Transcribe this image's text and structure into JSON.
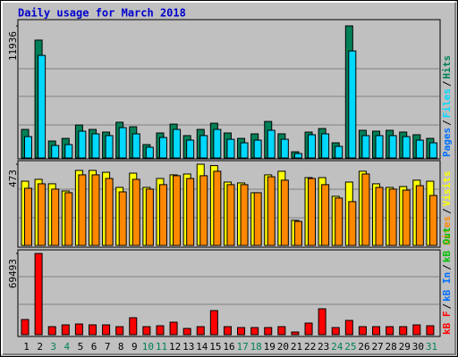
{
  "legend_separator": "/",
  "chart_data": [
    {
      "type": "bar",
      "title": "Daily usage for March 2018",
      "ylim": [
        0,
        11936
      ],
      "yticks": [
        11936
      ],
      "legend_reversed": true,
      "series": [
        {
          "name": "Hits",
          "color": "#008058",
          "values": [
            2580,
            10650,
            1530,
            1770,
            2980,
            2580,
            2340,
            3230,
            2820,
            1210,
            2260,
            3060,
            2020,
            2580,
            3140,
            2260,
            1770,
            2180,
            3300,
            2180,
            560,
            2340,
            2660,
            1370,
            11936,
            2500,
            2420,
            2500,
            2340,
            2100,
            1770
          ]
        },
        {
          "name": "Files",
          "color": "#00d8ff",
          "values": [
            1930,
            9270,
            1130,
            1210,
            2420,
            2180,
            2020,
            2740,
            2180,
            970,
            1850,
            2580,
            1610,
            2020,
            2580,
            1690,
            1370,
            1610,
            2500,
            1690,
            400,
            2100,
            2180,
            1050,
            9670,
            2020,
            2020,
            2020,
            1930,
            1610,
            1370
          ]
        },
        {
          "name": "Pages",
          "color": "#0070ff",
          "values": [
            0,
            0,
            0,
            0,
            0,
            0,
            0,
            0,
            0,
            0,
            0,
            0,
            0,
            0,
            0,
            0,
            0,
            0,
            0,
            0,
            0,
            0,
            0,
            0,
            0,
            0,
            0,
            0,
            0,
            0,
            0
          ]
        }
      ]
    },
    {
      "type": "bar",
      "ylim": [
        0,
        473
      ],
      "yticks": [
        473
      ],
      "legend_reversed": true,
      "series": [
        {
          "name": "Visits",
          "color": "#ffff00",
          "values": [
            374,
            385,
            359,
            317,
            437,
            437,
            426,
            338,
            421,
            338,
            390,
            411,
            416,
            473,
            465,
            369,
            364,
            307,
            411,
            432,
            146,
            395,
            395,
            286,
            369,
            432,
            359,
            338,
            343,
            380,
            374
          ]
        },
        {
          "name": "Sites",
          "color": "#ff8800",
          "values": [
            333,
            359,
            328,
            307,
            411,
            411,
            390,
            312,
            385,
            328,
            354,
            406,
            390,
            406,
            432,
            354,
            354,
            307,
            400,
            380,
            140,
            390,
            354,
            276,
            255,
            416,
            338,
            328,
            322,
            348,
            291
          ]
        }
      ]
    },
    {
      "type": "bar",
      "ylim": [
        0,
        69493
      ],
      "yticks": [
        69493
      ],
      "legend_reversed": false,
      "categories": [
        "1",
        "2",
        "3",
        "4",
        "5",
        "6",
        "7",
        "8",
        "9",
        "10",
        "11",
        "12",
        "13",
        "14",
        "15",
        "16",
        "17",
        "18",
        "19",
        "20",
        "21",
        "22",
        "23",
        "24",
        "25",
        "26",
        "27",
        "28",
        "29",
        "30",
        "31"
      ],
      "category_colors": [
        "#000000",
        "#000000",
        "#008058",
        "#008058",
        "#000000",
        "#000000",
        "#000000",
        "#000000",
        "#000000",
        "#008058",
        "#008058",
        "#000000",
        "#000000",
        "#000000",
        "#000000",
        "#000000",
        "#008058",
        "#008058",
        "#000000",
        "#000000",
        "#000000",
        "#000000",
        "#000000",
        "#008058",
        "#008058",
        "#000000",
        "#000000",
        "#000000",
        "#000000",
        "#000000",
        "#008058"
      ],
      "series": [
        {
          "name": "kB F",
          "color": "#ff0000",
          "values": [
            12980,
            69493,
            6870,
            8400,
            9160,
            8400,
            8400,
            6870,
            14510,
            6870,
            7640,
            10690,
            5350,
            6870,
            20620,
            6870,
            6110,
            6110,
            6110,
            6870,
            2290,
            9930,
            22150,
            6110,
            12220,
            6870,
            6870,
            6870,
            6870,
            8400,
            7640
          ]
        },
        {
          "name": "kB In",
          "color": "#0070ff",
          "values": [
            0,
            0,
            0,
            0,
            0,
            0,
            0,
            0,
            0,
            0,
            0,
            0,
            0,
            0,
            0,
            0,
            0,
            0,
            0,
            0,
            0,
            0,
            0,
            0,
            0,
            0,
            0,
            0,
            0,
            0,
            0
          ]
        },
        {
          "name": "kB Out",
          "color": "#00c000",
          "values": [
            0,
            0,
            0,
            0,
            0,
            0,
            0,
            0,
            0,
            0,
            0,
            0,
            0,
            0,
            0,
            0,
            0,
            0,
            0,
            0,
            0,
            0,
            0,
            0,
            0,
            0,
            0,
            0,
            0,
            0,
            0
          ]
        }
      ]
    }
  ]
}
